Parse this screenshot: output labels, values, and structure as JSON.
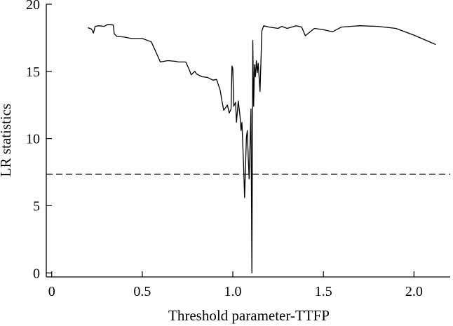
{
  "chart_data": {
    "type": "line",
    "title": "",
    "xlabel": "Threshold parameter-TTFP",
    "ylabel": "LR statistics",
    "xlim": [
      -0.03,
      2.2
    ],
    "ylim": [
      -0.3,
      20
    ],
    "x_ticks": [
      0,
      0.5,
      1.0,
      1.5,
      2.0
    ],
    "x_tick_labels": [
      "0",
      "0.5",
      "1.0",
      "1.5",
      "2.0"
    ],
    "y_ticks": [
      0,
      5,
      10,
      15,
      20
    ],
    "y_tick_labels": [
      "0",
      "5",
      "10",
      "15",
      "20"
    ],
    "grid": false,
    "legend": "none",
    "reference_line": {
      "y": 7.35,
      "style": "dashed"
    },
    "series": [
      {
        "color": "#000000",
        "points": [
          [
            0.2,
            18.25
          ],
          [
            0.22,
            18.15
          ],
          [
            0.23,
            17.85
          ],
          [
            0.24,
            18.35
          ],
          [
            0.26,
            18.4
          ],
          [
            0.29,
            18.35
          ],
          [
            0.31,
            18.5
          ],
          [
            0.34,
            18.45
          ],
          [
            0.345,
            17.8
          ],
          [
            0.36,
            17.6
          ],
          [
            0.4,
            17.55
          ],
          [
            0.44,
            17.45
          ],
          [
            0.5,
            17.45
          ],
          [
            0.55,
            17.2
          ],
          [
            0.6,
            15.7
          ],
          [
            0.64,
            15.8
          ],
          [
            0.68,
            15.75
          ],
          [
            0.7,
            15.7
          ],
          [
            0.74,
            15.7
          ],
          [
            0.76,
            15.1
          ],
          [
            0.77,
            14.75
          ],
          [
            0.79,
            15.0
          ],
          [
            0.8,
            14.8
          ],
          [
            0.83,
            14.6
          ],
          [
            0.86,
            14.55
          ],
          [
            0.89,
            14.35
          ],
          [
            0.91,
            14.4
          ],
          [
            0.93,
            13.6
          ],
          [
            0.94,
            12.8
          ],
          [
            0.95,
            12.1
          ],
          [
            0.97,
            12.5
          ],
          [
            0.98,
            11.9
          ],
          [
            0.99,
            12.2
          ],
          [
            0.995,
            15.4
          ],
          [
            1.0,
            15.2
          ],
          [
            1.005,
            12.4
          ],
          [
            1.015,
            12.7
          ],
          [
            1.02,
            11.2
          ],
          [
            1.03,
            12.8
          ],
          [
            1.04,
            11.6
          ],
          [
            1.045,
            10.6
          ],
          [
            1.05,
            11.2
          ],
          [
            1.06,
            7.8
          ],
          [
            1.065,
            5.6
          ],
          [
            1.075,
            10.1
          ],
          [
            1.08,
            10.6
          ],
          [
            1.085,
            8.6
          ],
          [
            1.09,
            7.0
          ],
          [
            1.1,
            12.2
          ],
          [
            1.105,
            0.0
          ],
          [
            1.11,
            17.3
          ],
          [
            1.115,
            12.4
          ],
          [
            1.12,
            15.5
          ],
          [
            1.125,
            14.6
          ],
          [
            1.13,
            15.8
          ],
          [
            1.135,
            14.9
          ],
          [
            1.14,
            15.6
          ],
          [
            1.15,
            13.5
          ],
          [
            1.16,
            18.0
          ],
          [
            1.17,
            18.4
          ],
          [
            1.2,
            18.3
          ],
          [
            1.25,
            18.2
          ],
          [
            1.27,
            18.35
          ],
          [
            1.3,
            18.2
          ],
          [
            1.35,
            18.4
          ],
          [
            1.38,
            18.3
          ],
          [
            1.4,
            17.65
          ],
          [
            1.45,
            18.2
          ],
          [
            1.5,
            18.1
          ],
          [
            1.55,
            17.95
          ],
          [
            1.6,
            18.3
          ],
          [
            1.65,
            18.35
          ],
          [
            1.7,
            18.4
          ],
          [
            1.8,
            18.35
          ],
          [
            1.9,
            18.2
          ],
          [
            2.0,
            17.7
          ],
          [
            2.12,
            17.0
          ]
        ]
      }
    ]
  }
}
